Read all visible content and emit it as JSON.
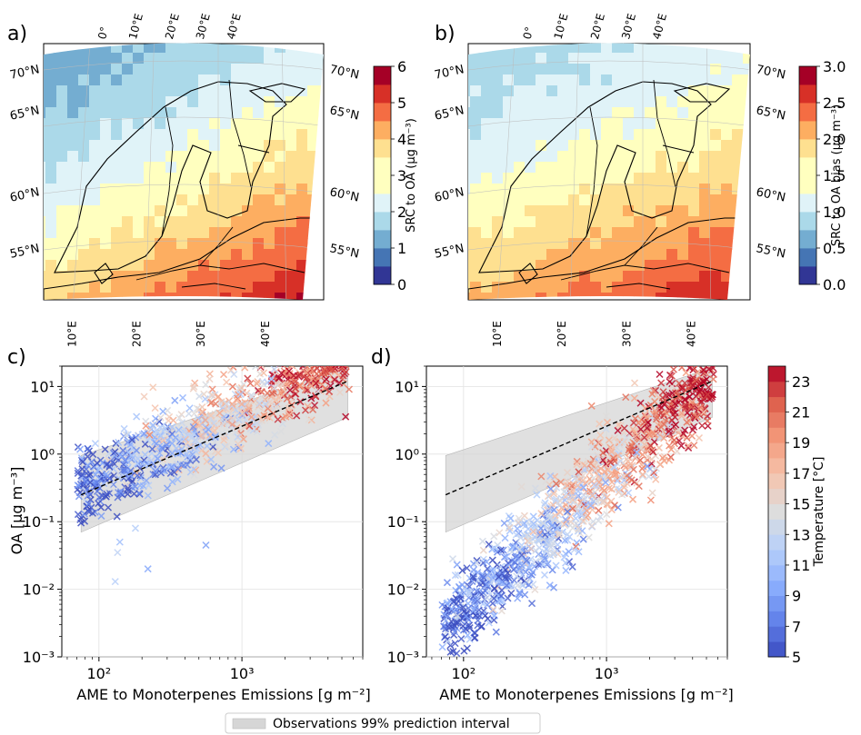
{
  "figure": {
    "legend": "Observations 99% prediction interval"
  },
  "chart_data": [
    {
      "panel": "a)",
      "type": "heatmap",
      "title": "",
      "map_region": "Fennoscandia / Northern Europe",
      "lat_labels": [
        "70°N",
        "65°N",
        "60°N",
        "55°N"
      ],
      "lon_labels_top": [
        "0°",
        "10°E",
        "20°E",
        "30°E",
        "40°E"
      ],
      "lon_labels_bottom": [
        "10°E",
        "20°E",
        "30°E",
        "40°E"
      ],
      "colorbar": {
        "label": "SRC to OA (µg m⁻³)",
        "ticks": [
          "0",
          "1",
          "2",
          "3",
          "4",
          "5",
          "6"
        ],
        "range": [
          0,
          6
        ],
        "colormap": "RdYlBu_r"
      },
      "description_gradient": "low (~1.5) in northwest increasing to ~6 in southeast"
    },
    {
      "panel": "b)",
      "type": "heatmap",
      "title": "",
      "lat_labels": [
        "70°N",
        "65°N",
        "60°N",
        "55°N"
      ],
      "lon_labels_top": [
        "0°",
        "10°E",
        "20°E",
        "30°E",
        "40°E"
      ],
      "lon_labels_bottom": [
        "10°E",
        "20°E",
        "30°E",
        "40°E"
      ],
      "colorbar": {
        "label": "SRC to OA bias (µg m⁻³)",
        "ticks": [
          "0.0",
          "0.5",
          "1.0",
          "1.5",
          "2.0",
          "2.5",
          "3.0"
        ],
        "range": [
          0,
          3
        ],
        "colormap": "RdYlBu_r"
      }
    },
    {
      "panel": "c)",
      "type": "scatter",
      "xlabel": "AME to Monoterpenes Emissions [g m⁻²]",
      "ylabel": "OA [µg m⁻³]",
      "xscale": "log",
      "yscale": "log",
      "xlim": [
        55,
        7000
      ],
      "ylim": [
        0.001,
        20
      ],
      "xticks": [
        "10²",
        "10³"
      ],
      "yticks": [
        "10⁻³",
        "10⁻²",
        "10⁻¹",
        "10⁰",
        "10¹"
      ],
      "fit_line": {
        "x": [
          75,
          5500
        ],
        "y": [
          0.25,
          12
        ]
      },
      "prediction_band": {
        "x": [
          75,
          5500
        ],
        "y_low": [
          0.07,
          3.5
        ],
        "y_high": [
          0.95,
          19
        ]
      },
      "point_cloud": {
        "n": 900,
        "log_x_range": [
          1.85,
          3.75
        ],
        "center_a": -2.6,
        "slope": 1.1,
        "spread": 0.28,
        "outliers": [
          [
            130,
            0.013
          ],
          [
            220,
            0.02
          ],
          [
            135,
            0.035
          ],
          [
            140,
            0.05
          ],
          [
            560,
            0.045
          ],
          [
            180,
            0.08
          ]
        ]
      },
      "marker": "x",
      "color_by": "Temperature"
    },
    {
      "panel": "d)",
      "type": "scatter",
      "xlabel": "AME to Monoterpenes Emissions [g m⁻²]",
      "xscale": "log",
      "yscale": "log",
      "xlim": [
        55,
        7000
      ],
      "ylim": [
        0.001,
        20
      ],
      "xticks": [
        "10²",
        "10³"
      ],
      "yticks": [
        "10⁻³",
        "10⁻²",
        "10⁻¹",
        "10⁰",
        "10¹"
      ],
      "fit_line": {
        "x": [
          75,
          5500
        ],
        "y": [
          0.25,
          12
        ]
      },
      "prediction_band": {
        "x": [
          75,
          5500
        ],
        "y_low": [
          0.07,
          3.5
        ],
        "y_high": [
          0.95,
          19
        ]
      },
      "point_cloud": {
        "n": 1200,
        "log_x_range": [
          1.85,
          3.75
        ],
        "center_a": -6.3,
        "slope": 2.0,
        "spread": 0.32,
        "outliers": []
      },
      "marker": "x",
      "color_by": "Temperature",
      "colorbar": {
        "label": "Temperature [°C]",
        "ticks": [
          "5",
          "7",
          "9",
          "11",
          "13",
          "15",
          "17",
          "19",
          "21",
          "23"
        ],
        "range": [
          5,
          24
        ],
        "colormap": "coolwarm"
      }
    }
  ]
}
